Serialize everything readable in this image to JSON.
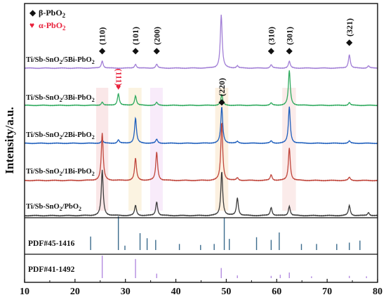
{
  "chart_data": {
    "type": "line",
    "xlabel": "",
    "ylabel": "Intensity/a.u.",
    "xlim": [
      10,
      80
    ],
    "xticks": [
      10,
      20,
      30,
      40,
      50,
      60,
      70,
      80
    ],
    "grid": false,
    "legend": {
      "placement": "top-left",
      "entries": [
        {
          "marker": "◆",
          "text": "β-PbO",
          "sub": "2",
          "color": "#111111"
        },
        {
          "marker": "♥",
          "text": "α-PbO",
          "sub": "2",
          "color": "#e8203a"
        }
      ]
    },
    "series": [
      {
        "name_main": "Ti/Sb-SnO",
        "name_sub": "2",
        "name_tail": "/5Bi-PbO",
        "name_tail_sub": "2",
        "color": "#a27fd6",
        "peaks": [
          [
            25.4,
            0.13
          ],
          [
            32.0,
            0.07
          ],
          [
            36.2,
            0.07
          ],
          [
            49.0,
            0.95
          ],
          [
            52.2,
            0.04
          ],
          [
            58.9,
            0.06
          ],
          [
            62.5,
            0.12
          ],
          [
            74.4,
            0.24
          ],
          [
            78.2,
            0.04
          ]
        ]
      },
      {
        "name_main": "Ti/Sb-SnO",
        "name_sub": "2",
        "name_tail": "/3Bi-PbO",
        "name_tail_sub": "2",
        "color": "#2faa5e",
        "peaks": [
          [
            25.4,
            0.06
          ],
          [
            28.6,
            0.21
          ],
          [
            32.0,
            0.17
          ],
          [
            36.2,
            0.05
          ],
          [
            49.1,
            0.19
          ],
          [
            58.9,
            0.04
          ],
          [
            62.5,
            0.62
          ],
          [
            74.4,
            0.05
          ]
        ]
      },
      {
        "name_main": "Ti/Sb-SnO",
        "name_sub": "2",
        "name_tail": "/2Bi-PbO",
        "name_tail_sub": "2",
        "color": "#1f5fbd",
        "peaks": [
          [
            25.4,
            0.06
          ],
          [
            28.6,
            0.06
          ],
          [
            32.0,
            0.45
          ],
          [
            36.2,
            0.07
          ],
          [
            49.1,
            0.65
          ],
          [
            52.2,
            0.03
          ],
          [
            58.9,
            0.04
          ],
          [
            62.5,
            0.65
          ],
          [
            74.4,
            0.04
          ]
        ]
      },
      {
        "name_main": "Ti/Sb-SnO",
        "name_sub": "2",
        "name_tail": "/1Bi-PbO",
        "name_tail_sub": "2",
        "color": "#c0463c",
        "peaks": [
          [
            25.4,
            0.75
          ],
          [
            32.0,
            0.35
          ],
          [
            36.2,
            0.45
          ],
          [
            49.1,
            0.92
          ],
          [
            52.2,
            0.04
          ],
          [
            58.9,
            0.09
          ],
          [
            62.5,
            0.52
          ],
          [
            74.4,
            0.05
          ]
        ]
      },
      {
        "name_main": "Ti/Sb-SnO",
        "name_sub": "2",
        "name_tail": "/PbO",
        "name_tail_sub": "2",
        "color": "#3c3c3c",
        "peaks": [
          [
            25.4,
            0.72
          ],
          [
            32.0,
            0.16
          ],
          [
            36.2,
            0.22
          ],
          [
            49.1,
            0.7
          ],
          [
            52.2,
            0.28
          ],
          [
            58.9,
            0.13
          ],
          [
            62.5,
            0.15
          ],
          [
            74.4,
            0.16
          ],
          [
            78.2,
            0.05
          ]
        ]
      }
    ],
    "annotations": [
      {
        "text": "(110)",
        "x": 25.4,
        "marker": "◆",
        "color": "#111111",
        "series_index": 0
      },
      {
        "text": "(101)",
        "x": 32.0,
        "marker": "◆",
        "color": "#111111",
        "series_index": 0
      },
      {
        "text": "(200)",
        "x": 36.2,
        "marker": "◆",
        "color": "#111111",
        "series_index": 0
      },
      {
        "text": "(310)",
        "x": 58.9,
        "marker": "◆",
        "color": "#111111",
        "series_index": 0
      },
      {
        "text": "(301)",
        "x": 62.5,
        "marker": "◆",
        "color": "#111111",
        "series_index": 0
      },
      {
        "text": "(321)",
        "x": 74.4,
        "marker": "◆",
        "color": "#111111",
        "series_index": 0
      },
      {
        "text": "(111)",
        "x": 28.6,
        "marker": "♥",
        "color": "#e8203a",
        "series_index": 1
      },
      {
        "text": "(220)",
        "x": 49.1,
        "marker": "◆",
        "color": "#111111",
        "series_index": 2
      }
    ],
    "references": [
      {
        "label": "PDF#45-1416",
        "color": "#3b6b8c",
        "lines": [
          [
            23.1,
            0.4
          ],
          [
            28.6,
            1.0
          ],
          [
            29.9,
            0.13
          ],
          [
            32.9,
            0.5
          ],
          [
            34.3,
            0.35
          ],
          [
            36.0,
            0.3
          ],
          [
            40.7,
            0.18
          ],
          [
            44.9,
            0.15
          ],
          [
            47.6,
            0.18
          ],
          [
            49.6,
            0.95
          ],
          [
            50.6,
            0.33
          ],
          [
            56.0,
            0.38
          ],
          [
            58.9,
            0.3
          ],
          [
            60.5,
            0.52
          ],
          [
            64.9,
            0.18
          ],
          [
            67.9,
            0.18
          ],
          [
            71.9,
            0.18
          ],
          [
            74.4,
            0.22
          ],
          [
            76.5,
            0.28
          ]
        ]
      },
      {
        "label": "PDF#41-1492",
        "color": "#b38be0",
        "lines": [
          [
            25.4,
            1.0
          ],
          [
            32.0,
            0.85
          ],
          [
            36.2,
            0.2
          ],
          [
            49.0,
            0.45
          ],
          [
            52.2,
            0.12
          ],
          [
            58.9,
            0.1
          ],
          [
            60.7,
            0.15
          ],
          [
            62.5,
            0.25
          ],
          [
            66.9,
            0.08
          ],
          [
            74.4,
            0.1
          ],
          [
            77.8,
            0.08
          ]
        ]
      }
    ],
    "highlight_bands": [
      {
        "x0": 24.2,
        "x1": 26.6,
        "color": "#f6d3d6"
      },
      {
        "x0": 30.6,
        "x1": 33.2,
        "color": "#f7e9c8"
      },
      {
        "x0": 34.9,
        "x1": 37.4,
        "color": "#f3dbf5"
      },
      {
        "x0": 47.8,
        "x1": 50.4,
        "color": "#f9e3c7"
      },
      {
        "x0": 61.1,
        "x1": 63.8,
        "color": "#f7dad9"
      }
    ]
  }
}
